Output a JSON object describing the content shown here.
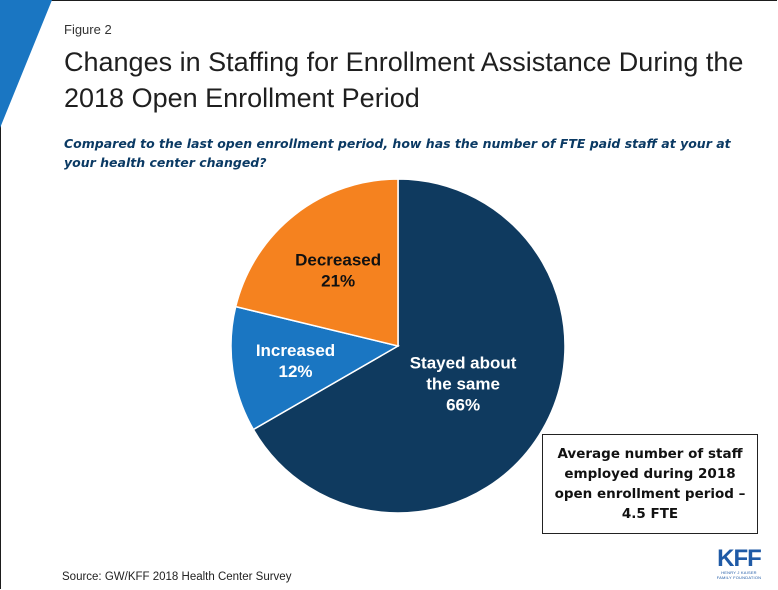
{
  "header": {
    "figure_label": "Figure 2",
    "title": "Changes in Staffing for Enrollment Assistance During the 2018 Open Enrollment Period",
    "question": "Compared to the last open enrollment period, how has the number of FTE paid staff at your at your health center changed?"
  },
  "chart_data": {
    "type": "pie",
    "slices": [
      {
        "label_lines": [
          "Stayed about",
          "the same"
        ],
        "percent_label": "66%",
        "value": 66,
        "color": "#0f3a5f",
        "label_color": "#ffffff"
      },
      {
        "label_lines": [
          "Increased"
        ],
        "percent_label": "12%",
        "value": 12,
        "color": "#1a76c2",
        "label_color": "#ffffff"
      },
      {
        "label_lines": [
          "Decreased"
        ],
        "percent_label": "21%",
        "value": 21,
        "color": "#f5821f",
        "label_color": "#111111"
      }
    ]
  },
  "note": {
    "text": "Average number of staff employed during 2018 open enrollment period – 4.5 FTE"
  },
  "footer": {
    "source": "Source: GW/KFF 2018 Health Center Survey",
    "logo_text": "KFF",
    "logo_subtext": "HENRY J KAISER FAMILY FOUNDATION"
  },
  "colors": {
    "accent_corner": "#1a76c2",
    "question_text": "#0b3a64"
  }
}
